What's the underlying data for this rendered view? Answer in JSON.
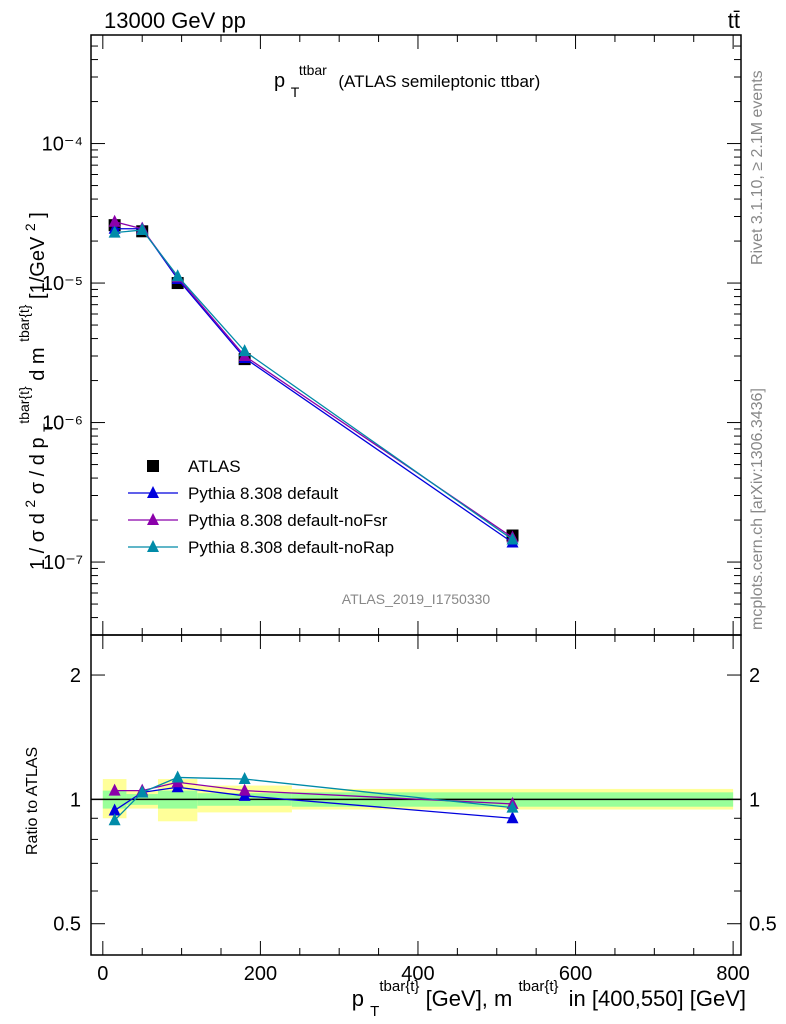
{
  "header": {
    "left": "13000 GeV pp",
    "right": "tt̄"
  },
  "side_labels": {
    "rivet": "Rivet 3.1.10, ≥ 2.1M events",
    "mcplots": "mcplots.cern.ch [arXiv:1306.3436]"
  },
  "chart_data": [
    {
      "panel": "main",
      "type": "line",
      "title": "p_T^ttbar (ATLAS semileptonic ttbar)",
      "title_parts": {
        "main": "p",
        "sub": "T",
        "sup": "ttbar",
        "rest": "(ATLAS semileptonic ttbar)"
      },
      "ylabel": "1 / σ d²σ / d p_T^{tbar{t}}d m^{tbar{t}}[1/GeV²]",
      "ylabel_parts": {
        "a": "1 / σ d",
        "sup2": "2",
        "b": "σ / d p",
        "subT": "T",
        "supTt": "tbar{t}",
        "c": "d m",
        "supTt2": "tbar{t}",
        "d": "[1/GeV",
        "sup2b": "2",
        "e": "]"
      },
      "yscale": "log",
      "ylim": [
        3e-08,
        0.0006
      ],
      "xlim": [
        -15,
        810
      ],
      "ytick_labels": [
        "10⁻⁷",
        "10⁻⁶",
        "10⁻⁵",
        "10⁻⁴"
      ],
      "watermark": "ATLAS_2019_I1750330",
      "legend_position": "lower-left",
      "series": [
        {
          "name": "ATLAS",
          "color": "#000000",
          "marker": "square",
          "x": [
            15,
            50,
            95,
            180,
            520
          ],
          "y": [
            2.6e-05,
            2.35e-05,
            1e-05,
            2.85e-06,
            1.55e-07
          ]
        },
        {
          "name": "Pythia 8.308 default",
          "color": "#0000dd",
          "marker": "triangle",
          "x": [
            15,
            50,
            95,
            180,
            520
          ],
          "y": [
            2.45e-05,
            2.45e-05,
            1.07e-05,
            2.9e-06,
            1.38e-07
          ]
        },
        {
          "name": "Pythia 8.308 default-noFsr",
          "color": "#8b00aa",
          "marker": "triangle",
          "x": [
            15,
            50,
            95,
            180,
            520
          ],
          "y": [
            2.75e-05,
            2.45e-05,
            1.1e-05,
            3e-06,
            1.5e-07
          ]
        },
        {
          "name": "Pythia 8.308 default-noRap",
          "color": "#008ba8",
          "marker": "triangle",
          "x": [
            15,
            50,
            95,
            180,
            520
          ],
          "y": [
            2.3e-05,
            2.4e-05,
            1.12e-05,
            3.25e-06,
            1.45e-07
          ]
        }
      ]
    },
    {
      "panel": "ratio",
      "type": "line",
      "ylabel": "Ratio to ATLAS",
      "xlabel": "p_T^{tbar{t}}[GeV], m^{tbar{t}} in [400,550] [GeV]",
      "xlabel_parts": {
        "p": "p",
        "subT": "T",
        "sup1": "tbar{t}",
        "mid": "[GeV], m",
        "sup2": "tbar{t}",
        "end": "in [400,550] [GeV]"
      },
      "yscale": "log",
      "ylim": [
        0.42,
        2.5
      ],
      "xlim": [
        -15,
        810
      ],
      "xtick_labels": [
        "0",
        "200",
        "400",
        "600",
        "800"
      ],
      "ytick_labels": [
        "0.5",
        "1",
        "2"
      ],
      "ytick_values": [
        0.5,
        1,
        2
      ],
      "band_colors": {
        "total": "#ffff99",
        "stat": "#99ff99"
      },
      "bins": [
        {
          "lo": 0,
          "hi": 30,
          "total": [
            0.9,
            1.12
          ],
          "stat": [
            0.95,
            1.05
          ]
        },
        {
          "lo": 30,
          "hi": 70,
          "total": [
            0.95,
            1.05
          ],
          "stat": [
            0.97,
            1.03
          ]
        },
        {
          "lo": 70,
          "hi": 120,
          "total": [
            0.885,
            1.12
          ],
          "stat": [
            0.95,
            1.05
          ]
        },
        {
          "lo": 120,
          "hi": 240,
          "total": [
            0.93,
            1.08
          ],
          "stat": [
            0.965,
            1.035
          ]
        },
        {
          "lo": 240,
          "hi": 800,
          "total": [
            0.945,
            1.06
          ],
          "stat": [
            0.96,
            1.04
          ]
        }
      ],
      "series": [
        {
          "name": "Pythia 8.308 default",
          "color": "#0000dd",
          "x": [
            15,
            50,
            95,
            180,
            520
          ],
          "y": [
            0.94,
            1.04,
            1.07,
            1.02,
            0.9
          ]
        },
        {
          "name": "Pythia 8.308 default-noFsr",
          "color": "#8b00aa",
          "x": [
            15,
            50,
            95,
            180,
            520
          ],
          "y": [
            1.05,
            1.05,
            1.1,
            1.05,
            0.975
          ]
        },
        {
          "name": "Pythia 8.308 default-noRap",
          "color": "#008ba8",
          "x": [
            15,
            50,
            95,
            180,
            520
          ],
          "y": [
            0.89,
            1.04,
            1.13,
            1.12,
            0.955
          ]
        }
      ]
    }
  ]
}
